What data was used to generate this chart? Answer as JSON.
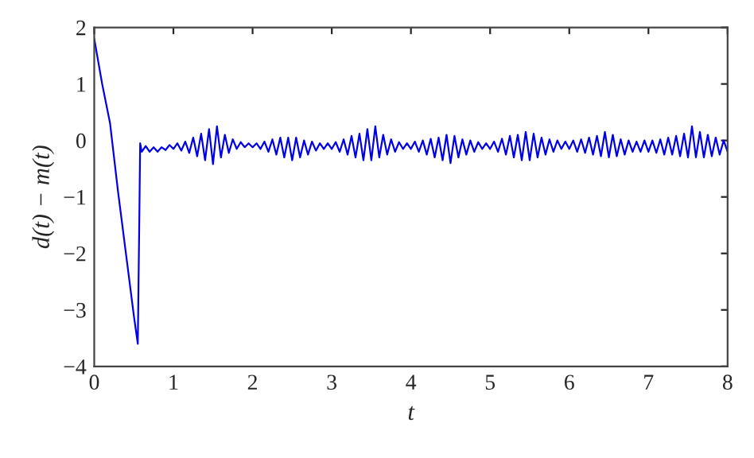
{
  "chart_data": {
    "type": "line",
    "xlabel": "t",
    "ylabel": "d(t) − m(t)",
    "xlim": [
      0,
      8
    ],
    "ylim": [
      -4,
      2
    ],
    "xticks": [
      0,
      1,
      2,
      3,
      4,
      5,
      6,
      7,
      8
    ],
    "yticks": [
      -4,
      -3,
      -2,
      -1,
      0,
      1,
      2
    ],
    "grid": false,
    "legend": false,
    "marker": "none",
    "line_style": "solid",
    "series": [
      {
        "color": "#0000e6",
        "x": [
          0,
          0.1,
          0.2,
          0.3,
          0.4,
          0.5,
          0.55,
          0.57,
          0.58,
          0.6,
          0.65,
          0.7,
          0.75,
          0.8,
          0.85,
          0.9,
          0.95,
          1.0,
          1.05,
          1.1,
          1.15,
          1.2,
          1.25,
          1.3,
          1.35,
          1.4,
          1.45,
          1.5,
          1.55,
          1.6,
          1.65,
          1.7,
          1.75,
          1.8,
          1.85,
          1.9,
          1.95,
          2.0,
          2.05,
          2.1,
          2.15,
          2.2,
          2.25,
          2.3,
          2.35,
          2.4,
          2.45,
          2.5,
          2.55,
          2.6,
          2.65,
          2.7,
          2.75,
          2.8,
          2.85,
          2.9,
          2.95,
          3.0,
          3.05,
          3.1,
          3.15,
          3.2,
          3.25,
          3.3,
          3.35,
          3.4,
          3.45,
          3.5,
          3.55,
          3.6,
          3.65,
          3.7,
          3.75,
          3.8,
          3.85,
          3.9,
          3.95,
          4.0,
          4.05,
          4.1,
          4.15,
          4.2,
          4.25,
          4.3,
          4.35,
          4.4,
          4.45,
          4.5,
          4.55,
          4.6,
          4.65,
          4.7,
          4.75,
          4.8,
          4.85,
          4.9,
          4.95,
          5.0,
          5.05,
          5.1,
          5.15,
          5.2,
          5.25,
          5.3,
          5.35,
          5.4,
          5.45,
          5.5,
          5.55,
          5.6,
          5.65,
          5.7,
          5.75,
          5.8,
          5.85,
          5.9,
          5.95,
          6.0,
          6.05,
          6.1,
          6.15,
          6.2,
          6.25,
          6.3,
          6.35,
          6.4,
          6.45,
          6.5,
          6.55,
          6.6,
          6.65,
          6.7,
          6.75,
          6.8,
          6.85,
          6.9,
          6.95,
          7.0,
          7.05,
          7.1,
          7.15,
          7.2,
          7.25,
          7.3,
          7.35,
          7.4,
          7.45,
          7.5,
          7.55,
          7.6,
          7.65,
          7.7,
          7.75,
          7.8,
          7.85,
          7.9,
          7.95,
          8.0
        ],
        "values": [
          1.8,
          1.0,
          0.3,
          -0.9,
          -2.0,
          -3.1,
          -3.6,
          -1.3,
          -0.05,
          -0.2,
          -0.1,
          -0.2,
          -0.12,
          -0.2,
          -0.12,
          -0.17,
          -0.08,
          -0.15,
          -0.05,
          -0.18,
          -0.02,
          -0.22,
          0.05,
          -0.28,
          0.12,
          -0.35,
          0.2,
          -0.42,
          0.25,
          -0.3,
          0.1,
          -0.22,
          0.02,
          -0.15,
          -0.03,
          -0.12,
          -0.05,
          -0.12,
          -0.05,
          -0.15,
          -0.02,
          -0.2,
          0.02,
          -0.25,
          0.05,
          -0.3,
          0.05,
          -0.35,
          0.05,
          -0.3,
          0.0,
          -0.25,
          -0.02,
          -0.18,
          -0.05,
          -0.15,
          -0.05,
          -0.15,
          -0.03,
          -0.2,
          0.02,
          -0.25,
          0.08,
          -0.3,
          0.12,
          -0.35,
          0.2,
          -0.35,
          0.25,
          -0.3,
          0.1,
          -0.25,
          0.02,
          -0.2,
          -0.03,
          -0.15,
          -0.05,
          -0.15,
          -0.02,
          -0.2,
          0.0,
          -0.25,
          0.03,
          -0.3,
          0.05,
          -0.35,
          0.1,
          -0.4,
          0.08,
          -0.3,
          0.02,
          -0.25,
          0.0,
          -0.2,
          -0.03,
          -0.15,
          -0.05,
          -0.15,
          -0.02,
          -0.2,
          0.03,
          -0.25,
          0.08,
          -0.3,
          0.1,
          -0.35,
          0.15,
          -0.35,
          0.12,
          -0.3,
          0.05,
          -0.25,
          0.02,
          -0.2,
          0.0,
          -0.15,
          -0.02,
          -0.15,
          0.0,
          -0.2,
          0.02,
          -0.22,
          0.05,
          -0.25,
          0.08,
          -0.28,
          0.15,
          -0.3,
          0.1,
          -0.28,
          0.02,
          -0.25,
          0.0,
          -0.2,
          -0.02,
          -0.2,
          0.0,
          -0.2,
          0.0,
          -0.22,
          0.02,
          -0.25,
          0.05,
          -0.25,
          0.08,
          -0.28,
          0.12,
          -0.3,
          0.25,
          -0.3,
          0.15,
          -0.3,
          0.1,
          -0.28,
          0.05,
          -0.25,
          0.0,
          -0.2
        ]
      }
    ]
  }
}
